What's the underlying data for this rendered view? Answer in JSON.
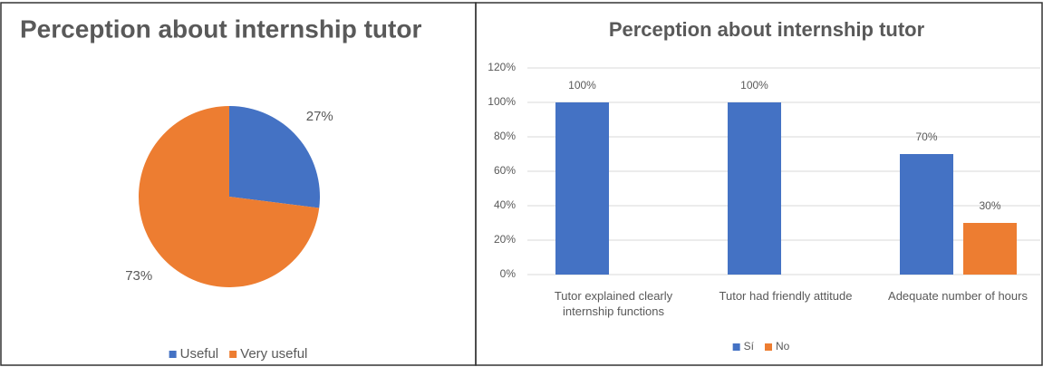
{
  "chart_data": [
    {
      "type": "pie",
      "title": "Perception about internship tutor",
      "categories": [
        "Useful",
        "Very useful"
      ],
      "values": [
        27,
        73
      ],
      "value_labels": [
        "27%",
        "73%"
      ],
      "colors": [
        "#4472c4",
        "#ed7d31"
      ],
      "legend": "bottom"
    },
    {
      "type": "bar",
      "title": "Perception about internship tutor",
      "categories": [
        "Tutor explained clearly internship functions",
        "Tutor had friendly attitude",
        "Adequate number of hours"
      ],
      "series": [
        {
          "name": "Sí",
          "color": "#4472c4",
          "values": [
            100,
            100,
            70
          ],
          "value_labels": [
            "100%",
            "100%",
            "70%"
          ]
        },
        {
          "name": "No",
          "color": "#ed7d31",
          "values": [
            null,
            null,
            30
          ],
          "value_labels": [
            null,
            null,
            "30%"
          ]
        }
      ],
      "ylim": [
        0,
        120
      ],
      "yticks": [
        {
          "value": 0,
          "label": "0%"
        },
        {
          "value": 20,
          "label": "20%"
        },
        {
          "value": 40,
          "label": "40%"
        },
        {
          "value": 60,
          "label": "60%"
        },
        {
          "value": 80,
          "label": "80%"
        },
        {
          "value": 100,
          "label": "100%"
        },
        {
          "value": 120,
          "label": "120%"
        }
      ],
      "grid": true,
      "legend": "bottom"
    }
  ]
}
